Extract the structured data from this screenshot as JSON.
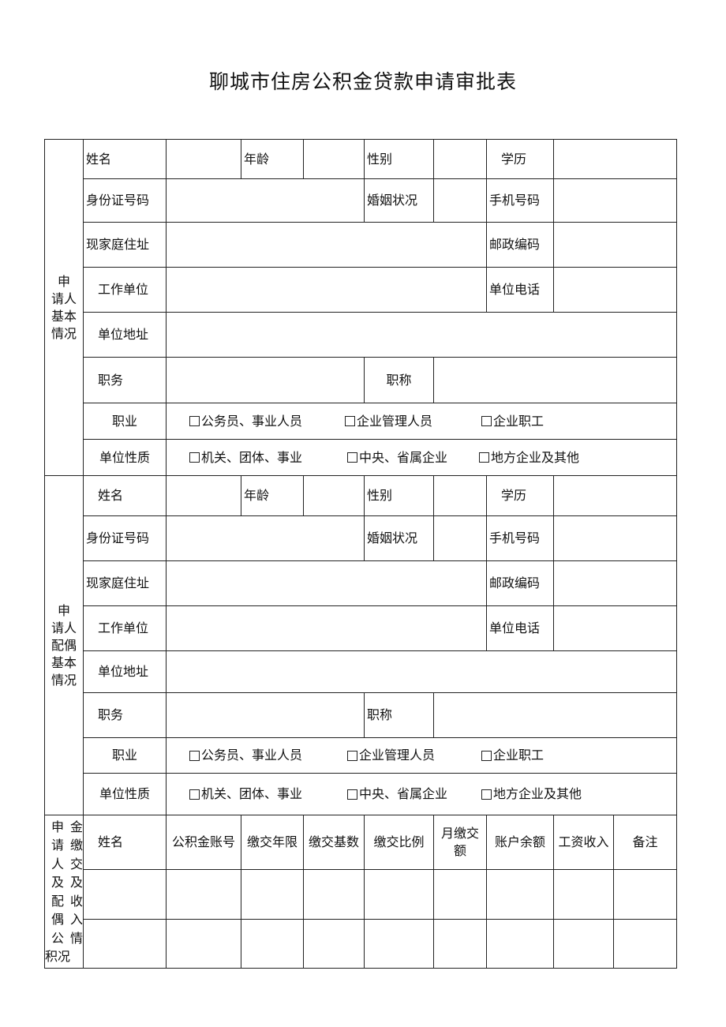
{
  "title": "聊城市住房公积金贷款申请审批表",
  "applicant": {
    "section_label": "申\n请人\n基本\n情况",
    "name": "姓名",
    "age": "年龄",
    "gender": "性别",
    "education": "学历",
    "id_number": "身份证号码",
    "marital_status": "婚姻状况",
    "mobile": "手机号码",
    "address": "现家庭住址",
    "postal_code": "邮政编码",
    "employer": "工作单位",
    "employer_phone": "单位电话",
    "employer_address": "单位地址",
    "position": "职务",
    "title": "职称",
    "occupation": "职业",
    "occupation_options": [
      "公务员、事业人员",
      "企业管理人员",
      "企业职工"
    ],
    "employer_type": "单位性质",
    "employer_type_options": [
      "机关、团体、事业",
      "中央、省属企业",
      "地方企业及其他"
    ]
  },
  "spouse": {
    "section_label": "申\n请人\n配偶\n基本\n情况",
    "name": "姓名",
    "age": "年龄",
    "gender": "性别",
    "education": "学历",
    "id_number": "身份证号码",
    "marital_status": "婚姻状况",
    "mobile": "手机号码",
    "address": "现家庭住址",
    "postal_code": "邮政编码",
    "employer": "工作单位",
    "employer_phone": "单位电话",
    "employer_address": "单位地址",
    "position": "职务",
    "title": "职称",
    "occupation": "职业",
    "occupation_options": [
      "公务员、事业人员",
      "企业管理人员",
      "企业职工"
    ],
    "employer_type": "单位性质",
    "employer_type_options": [
      "机关、团体、事业",
      "中央、省属企业",
      "地方企业及其他"
    ]
  },
  "fund": {
    "section_label_left": "申\n请\n人\n及\n配\n偶\n公\n积况",
    "section_label_right": "金\n缴\n交\n及\n收\n入\n情\n ",
    "headers": [
      "姓名",
      "公积金账号",
      "缴交年限",
      "缴交基数",
      "缴交比例",
      "月缴交\n额",
      "账户余额",
      "工资收入",
      "备注"
    ]
  }
}
